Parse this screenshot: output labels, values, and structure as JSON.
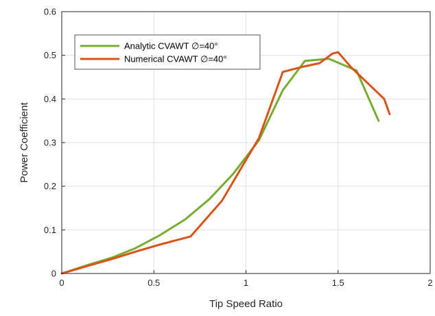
{
  "chart_data": {
    "type": "line",
    "xlabel": "Tip Speed Ratio",
    "ylabel": "Power Coefficient",
    "xlim": [
      0,
      2
    ],
    "ylim": [
      0,
      0.6
    ],
    "x_ticks": [
      "0",
      "0.5",
      "1",
      "1.5",
      "2"
    ],
    "y_ticks": [
      "0",
      "0.1",
      "0.2",
      "0.3",
      "0.4",
      "0.5",
      "0.6"
    ],
    "grid": true,
    "legend_position": "top-left",
    "series": [
      {
        "name": "Analytic CVAWT ∅=40°",
        "color": "#77ac30",
        "x": [
          0,
          0.13,
          0.27,
          0.4,
          0.53,
          0.67,
          0.8,
          0.93,
          1.07,
          1.2,
          1.32,
          1.45,
          1.6,
          1.72
        ],
        "y": [
          0,
          0.018,
          0.036,
          0.058,
          0.087,
          0.124,
          0.17,
          0.228,
          0.305,
          0.42,
          0.487,
          0.492,
          0.465,
          0.35
        ]
      },
      {
        "name": "Numerical CVAWT ∅=40°",
        "color": "#d95319",
        "x": [
          0,
          0.13,
          0.27,
          0.4,
          0.53,
          0.7,
          0.87,
          1.07,
          1.2,
          1.3,
          1.4,
          1.47,
          1.5,
          1.57,
          1.75,
          1.78
        ],
        "y": [
          0,
          0.016,
          0.033,
          0.05,
          0.066,
          0.085,
          0.167,
          0.31,
          0.462,
          0.473,
          0.482,
          0.504,
          0.507,
          0.473,
          0.4,
          0.365
        ]
      }
    ]
  }
}
